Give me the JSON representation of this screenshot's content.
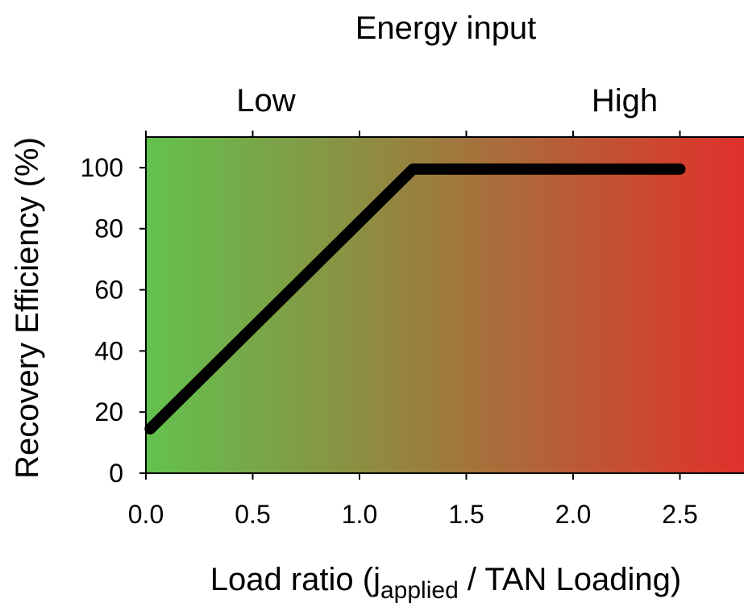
{
  "chart_data": {
    "type": "line",
    "title": "Energy input",
    "top_axis_labels": [
      "Low",
      "High"
    ],
    "xlabel": {
      "prefix": "Load ratio (j",
      "subscript": "applied",
      "suffix": " / TAN Loading)"
    },
    "ylabel": "Recovery Efficiency (%)",
    "xlim": [
      0.0,
      2.8
    ],
    "ylim": [
      0,
      110
    ],
    "x_ticks": [
      0.0,
      0.5,
      1.0,
      1.5,
      2.0,
      2.5
    ],
    "x_tick_labels": [
      "0.0",
      "0.5",
      "1.0",
      "1.5",
      "2.0",
      "2.5"
    ],
    "y_ticks": [
      0,
      20,
      40,
      60,
      80,
      100
    ],
    "y_tick_labels": [
      "0",
      "20",
      "40",
      "60",
      "80",
      "100"
    ],
    "series": [
      {
        "x": [
          0.02,
          1.25,
          2.5
        ],
        "y": [
          14.5,
          99.5,
          99.5
        ],
        "color": "#000000"
      }
    ],
    "background_gradient": {
      "direction": "left-to-right",
      "colors": [
        "#62c24e",
        "#9e7a3e",
        "#e0302b"
      ]
    },
    "grid": false,
    "legend": "none"
  }
}
